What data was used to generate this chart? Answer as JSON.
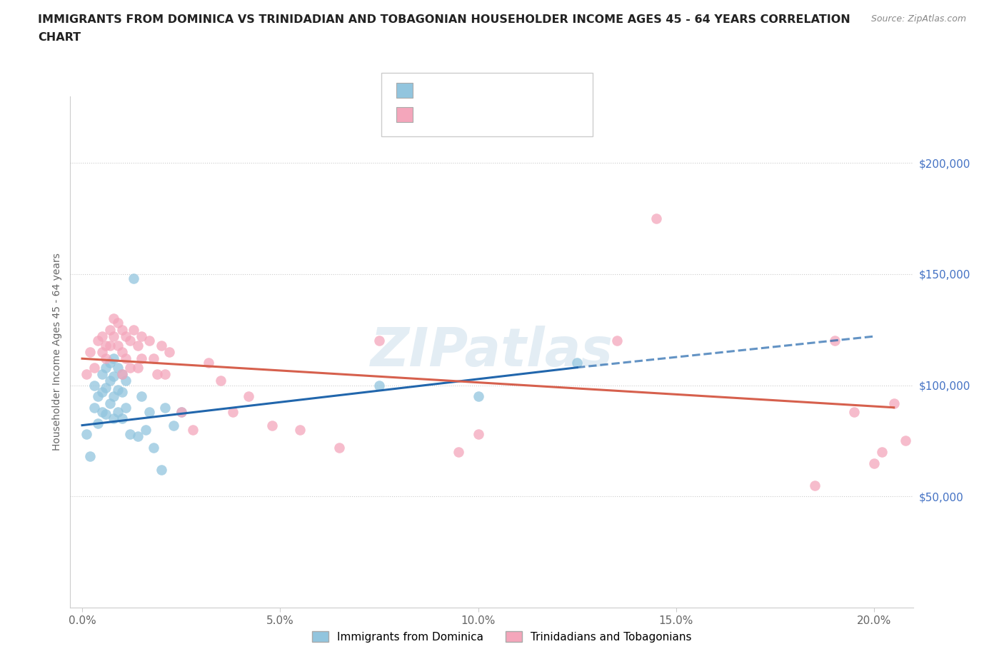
{
  "title_line1": "IMMIGRANTS FROM DOMINICA VS TRINIDADIAN AND TOBAGONIAN HOUSEHOLDER INCOME AGES 45 - 64 YEARS CORRELATION",
  "title_line2": "CHART",
  "source": "Source: ZipAtlas.com",
  "ylabel": "Householder Income Ages 45 - 64 years",
  "legend_label1": "Immigrants from Dominica",
  "legend_label2": "Trinidadians and Tobagonians",
  "color_blue": "#92c5de",
  "color_pink": "#f4a6bb",
  "color_line_blue": "#2166ac",
  "color_line_pink": "#d6604d",
  "xlim": [
    -0.3,
    21.0
  ],
  "ylim": [
    0,
    230000
  ],
  "xticks": [
    0.0,
    5.0,
    10.0,
    15.0,
    20.0
  ],
  "xticklabels": [
    "0.0%",
    "5.0%",
    "10.0%",
    "15.0%",
    "20.0%"
  ],
  "yticks_right": [
    50000,
    100000,
    150000,
    200000
  ],
  "ytick_labels_right": [
    "$50,000",
    "$100,000",
    "$150,000",
    "$200,000"
  ],
  "hgrid_vals": [
    50000,
    100000,
    150000,
    200000
  ],
  "dominica_x": [
    0.1,
    0.2,
    0.3,
    0.3,
    0.4,
    0.4,
    0.5,
    0.5,
    0.5,
    0.6,
    0.6,
    0.6,
    0.7,
    0.7,
    0.7,
    0.8,
    0.8,
    0.8,
    0.8,
    0.9,
    0.9,
    0.9,
    1.0,
    1.0,
    1.0,
    1.1,
    1.1,
    1.2,
    1.3,
    1.4,
    1.5,
    1.6,
    1.7,
    1.8,
    2.0,
    2.1,
    2.3,
    2.5,
    7.5,
    10.0,
    12.5
  ],
  "dominica_y": [
    78000,
    68000,
    100000,
    90000,
    95000,
    83000,
    105000,
    97000,
    88000,
    108000,
    99000,
    87000,
    110000,
    102000,
    92000,
    112000,
    104000,
    95000,
    85000,
    108000,
    98000,
    88000,
    105000,
    97000,
    85000,
    102000,
    90000,
    78000,
    148000,
    77000,
    95000,
    80000,
    88000,
    72000,
    62000,
    90000,
    82000,
    88000,
    100000,
    95000,
    110000
  ],
  "trinidad_x": [
    0.1,
    0.2,
    0.3,
    0.4,
    0.5,
    0.5,
    0.6,
    0.6,
    0.7,
    0.7,
    0.8,
    0.8,
    0.9,
    0.9,
    1.0,
    1.0,
    1.0,
    1.1,
    1.1,
    1.2,
    1.2,
    1.3,
    1.4,
    1.4,
    1.5,
    1.5,
    1.7,
    1.8,
    1.9,
    2.0,
    2.1,
    2.2,
    2.5,
    2.8,
    3.2,
    3.5,
    3.8,
    4.2,
    4.8,
    5.5,
    6.5,
    7.5,
    9.5,
    10.0,
    13.5,
    14.5,
    18.5,
    19.0,
    19.5,
    20.0,
    20.2,
    20.5,
    20.8
  ],
  "trinidad_y": [
    105000,
    115000,
    108000,
    120000,
    122000,
    115000,
    118000,
    112000,
    125000,
    118000,
    130000,
    122000,
    128000,
    118000,
    125000,
    115000,
    105000,
    122000,
    112000,
    120000,
    108000,
    125000,
    118000,
    108000,
    122000,
    112000,
    120000,
    112000,
    105000,
    118000,
    105000,
    115000,
    88000,
    80000,
    110000,
    102000,
    88000,
    95000,
    82000,
    80000,
    72000,
    120000,
    70000,
    78000,
    120000,
    175000,
    55000,
    120000,
    88000,
    65000,
    70000,
    92000,
    75000
  ],
  "reg_blue_x0": 0.0,
  "reg_blue_y0": 82000,
  "reg_blue_x1": 12.5,
  "reg_blue_y1": 108000,
  "reg_blue_dash_x1": 20.0,
  "reg_blue_dash_y1": 122000,
  "reg_pink_x0": 0.0,
  "reg_pink_y0": 112000,
  "reg_pink_x1": 20.5,
  "reg_pink_y1": 90000
}
